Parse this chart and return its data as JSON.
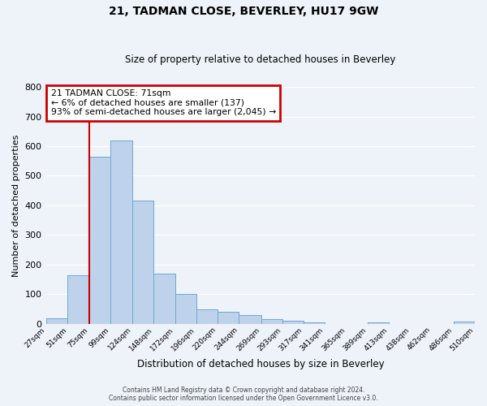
{
  "title": "21, TADMAN CLOSE, BEVERLEY, HU17 9GW",
  "subtitle": "Size of property relative to detached houses in Beverley",
  "xlabel": "Distribution of detached houses by size in Beverley",
  "ylabel": "Number of detached properties",
  "bar_left_edges": [
    27,
    51,
    75,
    99,
    124,
    148,
    172,
    196,
    220,
    244,
    269,
    293,
    317,
    341,
    365,
    389,
    413,
    438,
    462,
    486
  ],
  "bar_heights": [
    20,
    165,
    565,
    620,
    415,
    170,
    100,
    50,
    40,
    30,
    15,
    10,
    5,
    0,
    0,
    5,
    0,
    0,
    0,
    8
  ],
  "bar_widths": [
    24,
    24,
    24,
    25,
    24,
    24,
    24,
    24,
    24,
    25,
    24,
    24,
    24,
    24,
    24,
    24,
    25,
    24,
    24,
    24
  ],
  "bar_color": "#bed3eb",
  "bar_edge_color": "#6fa8d6",
  "vline_x": 75,
  "vline_color": "#cc0000",
  "ylim": [
    0,
    800
  ],
  "yticks": [
    0,
    100,
    200,
    300,
    400,
    500,
    600,
    700,
    800
  ],
  "xtick_labels": [
    "27sqm",
    "51sqm",
    "75sqm",
    "99sqm",
    "124sqm",
    "148sqm",
    "172sqm",
    "196sqm",
    "220sqm",
    "244sqm",
    "269sqm",
    "293sqm",
    "317sqm",
    "341sqm",
    "365sqm",
    "389sqm",
    "413sqm",
    "438sqm",
    "462sqm",
    "486sqm",
    "510sqm"
  ],
  "annotation_title": "21 TADMAN CLOSE: 71sqm",
  "annotation_line1": "← 6% of detached houses are smaller (137)",
  "annotation_line2": "93% of semi-detached houses are larger (2,045) →",
  "annotation_box_color": "#cc0000",
  "footer_line1": "Contains HM Land Registry data © Crown copyright and database right 2024.",
  "footer_line2": "Contains public sector information licensed under the Open Government Licence v3.0.",
  "background_color": "#eef2f9",
  "grid_color": "#ffffff"
}
